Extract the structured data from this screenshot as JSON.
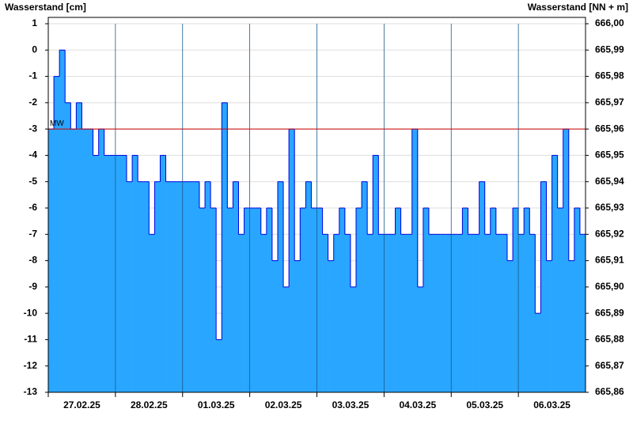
{
  "chart_data": {
    "type": "step-area",
    "y_label": "Wasserstand [cm]",
    "y2_label": "Wasserstand [NN + m]",
    "categories": [
      "27.02.25",
      "28.02.25",
      "01.03.25",
      "02.03.25",
      "03.03.25",
      "04.03.25",
      "05.03.25",
      "06.03.25"
    ],
    "values": [
      [
        -3,
        -1,
        0,
        -2,
        -3,
        -2,
        -3,
        -3,
        -4,
        -3,
        -4,
        -4
      ],
      [
        -4,
        -4,
        -5,
        -4,
        -5,
        -5,
        -7,
        -5,
        -4,
        -5,
        -5,
        -5
      ],
      [
        -5,
        -5,
        -5,
        -6,
        -5,
        -6,
        -11,
        -2,
        -6,
        -5,
        -7,
        -6
      ],
      [
        -6,
        -6,
        -7,
        -6,
        -8,
        -5,
        -9,
        -3,
        -8,
        -6,
        -5,
        -6
      ],
      [
        -6,
        -7,
        -8,
        -7,
        -6,
        -7,
        -9,
        -6,
        -5,
        -7,
        -4,
        -7
      ],
      [
        -7,
        -7,
        -6,
        -7,
        -7,
        -3,
        -9,
        -6,
        -7,
        -7,
        -7,
        -7
      ],
      [
        -7,
        -7,
        -6,
        -7,
        -7,
        -5,
        -7,
        -6,
        -7,
        -7,
        -8,
        -6
      ],
      [
        -7,
        -6,
        -7,
        -10,
        -5,
        -8,
        -4,
        -6,
        -3,
        -8,
        -6,
        -7
      ]
    ],
    "fill_color": "#29a6ff",
    "line_color": "#0000dd",
    "reference": {
      "label": "MW",
      "value": -3,
      "color": "#cc0000"
    },
    "ylim": [
      -13,
      1
    ],
    "yticks": [
      1,
      0,
      -1,
      -2,
      -3,
      -4,
      -5,
      -6,
      -7,
      -8,
      -9,
      -10,
      -11,
      -12,
      -13
    ],
    "y2lim": [
      665.86,
      666.0
    ],
    "y2ticks": [
      {
        "value": 666.0,
        "label": "666,00"
      },
      {
        "value": 665.99,
        "label": "665,99"
      },
      {
        "value": 665.98,
        "label": "665,98"
      },
      {
        "value": 665.97,
        "label": "665,97"
      },
      {
        "value": 665.96,
        "label": "665,96"
      },
      {
        "value": 665.95,
        "label": "665,95"
      },
      {
        "value": 665.94,
        "label": "665,94"
      },
      {
        "value": 665.93,
        "label": "665,93"
      },
      {
        "value": 665.92,
        "label": "665,92"
      },
      {
        "value": 665.91,
        "label": "665,91"
      },
      {
        "value": 665.9,
        "label": "665,90"
      },
      {
        "value": 665.89,
        "label": "665,89"
      },
      {
        "value": 665.88,
        "label": "665,88"
      },
      {
        "value": 665.87,
        "label": "665,87"
      },
      {
        "value": 665.86,
        "label": "665,86"
      }
    ],
    "grid": true
  }
}
